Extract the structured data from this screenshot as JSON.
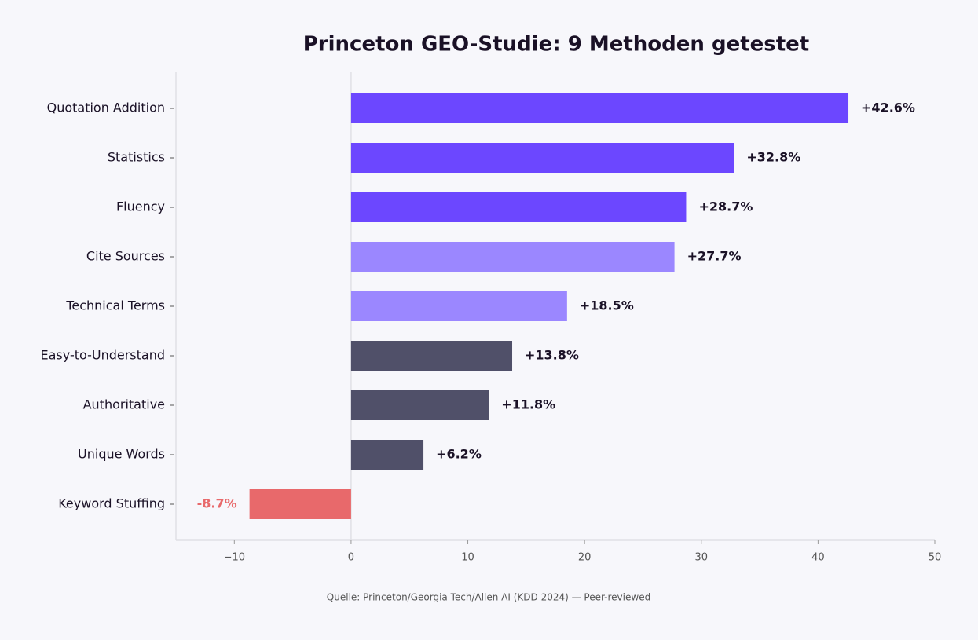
{
  "chart_data": {
    "type": "barh",
    "title": "Princeton GEO-Studie: 9 Methoden getestet",
    "categories": [
      "Quotation Addition",
      "Statistics",
      "Fluency",
      "Cite Sources",
      "Technical Terms",
      "Easy-to-Understand",
      "Authoritative",
      "Unique Words",
      "Keyword Stuffing"
    ],
    "values": [
      42.6,
      32.8,
      28.7,
      27.7,
      18.5,
      13.8,
      11.8,
      6.2,
      -8.7
    ],
    "value_labels": [
      "+42.6%",
      "+32.8%",
      "+28.7%",
      "+27.7%",
      "+18.5%",
      "+13.8%",
      "+11.8%",
      "+6.2%",
      "-8.7%"
    ],
    "colors": [
      "#6c47ff",
      "#6c47ff",
      "#6c47ff",
      "#9b87ff",
      "#9b87ff",
      "#505069",
      "#505069",
      "#505069",
      "#e8696b"
    ],
    "xlim": [
      -15,
      50
    ],
    "xticks": [
      {
        "value": -10,
        "label": "−10"
      },
      0,
      10,
      20,
      30,
      40,
      50
    ],
    "source": "Quelle: Princeton/Georgia Tech/Allen AI (KDD 2024) — Peer-reviewed"
  }
}
